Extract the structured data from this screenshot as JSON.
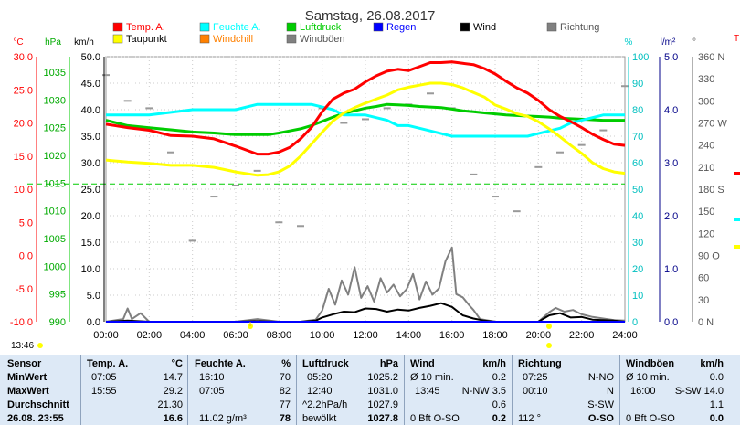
{
  "chart_data": {
    "type": "line",
    "title": "Samstag, 26.08.2017",
    "x_ticks": [
      "00:00",
      "02:00",
      "04:00",
      "06:00",
      "08:00",
      "10:00",
      "12:00",
      "14:00",
      "16:00",
      "18:00",
      "20:00",
      "22:00",
      "24:00"
    ],
    "x_range": [
      0,
      24
    ],
    "axes": {
      "temp": {
        "label": "°C",
        "color": "#ff0000",
        "range": [
          -10,
          30
        ],
        "ticks": [
          "30.0",
          "25.0",
          "20.0",
          "15.0",
          "10.0",
          "5.0",
          "0.0",
          "-5.0",
          "-10.0"
        ]
      },
      "hpa": {
        "label": "hPa",
        "color": "#00aa00",
        "range": [
          990,
          1040
        ],
        "ticks": [
          "1035",
          "1030",
          "1025",
          "1020",
          "1015",
          "1010",
          "1005",
          "1000",
          "995",
          "990"
        ]
      },
      "kmh": {
        "label": "km/h",
        "color": "#000000",
        "range": [
          0,
          50
        ],
        "ticks": [
          "50.0",
          "45.0",
          "40.0",
          "35.0",
          "30.0",
          "25.0",
          "20.0",
          "15.0",
          "10.0",
          "5.0",
          "0.0"
        ]
      },
      "pct": {
        "label": "%",
        "color": "#00cccc",
        "range": [
          0,
          100
        ],
        "ticks": [
          "100",
          "90",
          "80",
          "70",
          "60",
          "50",
          "40",
          "30",
          "20",
          "10",
          "0"
        ]
      },
      "rain": {
        "label": "l/m²",
        "color": "#000088",
        "range": [
          0,
          5
        ],
        "ticks": [
          "5.0",
          "4.0",
          "3.0",
          "2.0",
          "1.0",
          "0.0"
        ]
      },
      "dir": {
        "label": "°",
        "color": "#555555",
        "range": [
          0,
          360
        ],
        "ticks": [
          "360 N",
          "330",
          "300",
          "270 W",
          "240",
          "210",
          "180 S",
          "150",
          "120",
          "90 O",
          "60",
          "30",
          "0 N"
        ]
      }
    },
    "legend": [
      {
        "name": "Temp. A.",
        "color": "#ff0000"
      },
      {
        "name": "Taupunkt",
        "color": "#ffff00"
      },
      {
        "name": "Feuchte A.",
        "color": "#00ffff"
      },
      {
        "name": "Windchill",
        "color": "#ff8000"
      },
      {
        "name": "Luftdruck",
        "color": "#00cc00"
      },
      {
        "name": "Windböen",
        "color": "#808080"
      },
      {
        "name": "Regen",
        "color": "#0000ff"
      },
      {
        "name": "Wind",
        "color": "#000000"
      },
      {
        "name": "Richtung",
        "color": "#808080"
      }
    ],
    "series": [
      {
        "name": "Temp. A.",
        "axis": "temp",
        "color": "#ff0000",
        "x": [
          0,
          1,
          2,
          3,
          4,
          5,
          6,
          7,
          7.5,
          8,
          8.5,
          9,
          9.5,
          10,
          10.5,
          11,
          11.5,
          12,
          12.5,
          13,
          13.5,
          14,
          14.5,
          15,
          15.5,
          16,
          16.5,
          17,
          17.5,
          18,
          18.5,
          19,
          19.5,
          20,
          20.5,
          21,
          21.5,
          22,
          22.5,
          23,
          23.5,
          24
        ],
        "y": [
          19.8,
          19.3,
          18.9,
          18.1,
          18.0,
          17.6,
          16.5,
          15.3,
          15.3,
          15.6,
          16.3,
          17.6,
          19.3,
          21.7,
          23.6,
          24.5,
          25.1,
          26.2,
          27.1,
          27.8,
          28.1,
          27.9,
          28.5,
          29.1,
          29.1,
          29.2,
          29.0,
          28.8,
          28.2,
          27.4,
          26.3,
          25.3,
          24.5,
          23.4,
          22.0,
          21.0,
          20.2,
          19.3,
          18.3,
          17.5,
          16.8,
          16.6
        ]
      },
      {
        "name": "Taupunkt",
        "axis": "temp",
        "color": "#ffff00",
        "x": [
          0,
          1,
          2,
          3,
          4,
          5,
          6,
          7,
          7.5,
          8,
          8.5,
          9,
          9.5,
          10,
          10.5,
          11,
          11.5,
          12,
          12.5,
          13,
          13.5,
          14,
          14.5,
          15,
          15.5,
          16,
          16.5,
          17,
          17.5,
          18,
          18.5,
          19,
          19.5,
          20,
          20.5,
          21,
          21.5,
          22,
          22.5,
          23,
          23.5,
          24
        ],
        "y": [
          14.4,
          14.1,
          13.9,
          13.6,
          13.6,
          13.3,
          12.6,
          12.1,
          12.2,
          12.6,
          13.5,
          15.0,
          16.8,
          18.6,
          20.3,
          21.5,
          22.3,
          23.0,
          23.6,
          24.2,
          25.0,
          25.4,
          25.7,
          26.0,
          26.0,
          25.8,
          25.3,
          24.6,
          23.9,
          22.7,
          22.1,
          21.4,
          21.0,
          20.2,
          19.1,
          17.9,
          16.6,
          15.4,
          14.0,
          13.1,
          12.6,
          12.4
        ]
      },
      {
        "name": "Feuchte A.",
        "axis": "pct",
        "color": "#00ffff",
        "x": [
          0,
          1,
          2,
          3,
          4,
          5,
          6,
          7,
          7.5,
          8,
          8.5,
          9,
          9.5,
          10,
          10.5,
          11,
          11.5,
          12,
          12.5,
          13,
          13.5,
          14,
          14.5,
          15,
          15.5,
          16,
          16.5,
          17,
          17.5,
          18,
          18.5,
          19,
          19.5,
          20,
          20.5,
          21,
          21.5,
          22,
          22.5,
          23,
          23.5,
          24
        ],
        "y": [
          78,
          78,
          78,
          79,
          80,
          80,
          80,
          82,
          82,
          82,
          82,
          82,
          82,
          81,
          80,
          78,
          78,
          78,
          77,
          76,
          74,
          74,
          73,
          72,
          71,
          70,
          70,
          70,
          70,
          70,
          70,
          70,
          70,
          71,
          72,
          73,
          75,
          76,
          77,
          78,
          78,
          78
        ]
      },
      {
        "name": "Luftdruck",
        "axis": "hpa",
        "color": "#00cc00",
        "x": [
          0,
          1,
          2,
          3,
          4,
          5,
          6,
          7,
          7.5,
          8,
          8.5,
          9,
          9.5,
          10,
          10.5,
          11,
          11.5,
          12,
          12.5,
          13,
          13.5,
          14,
          14.5,
          15,
          15.5,
          16,
          16.5,
          17,
          17.5,
          18,
          18.5,
          19,
          19.5,
          20,
          20.5,
          21,
          21.5,
          22,
          22.5,
          23,
          23.5,
          24
        ],
        "y": [
          1028.0,
          1027.0,
          1026.6,
          1026.2,
          1025.8,
          1025.6,
          1025.3,
          1025.3,
          1025.3,
          1025.6,
          1026.0,
          1026.4,
          1027.0,
          1027.8,
          1028.6,
          1029.3,
          1029.8,
          1030.3,
          1030.6,
          1031.0,
          1030.9,
          1030.8,
          1030.6,
          1030.5,
          1030.4,
          1030.1,
          1029.8,
          1029.6,
          1029.4,
          1029.2,
          1029.0,
          1028.9,
          1028.8,
          1028.7,
          1028.6,
          1028.4,
          1028.3,
          1028.2,
          1028.1,
          1028.0,
          1028.0,
          1028.0
        ]
      },
      {
        "name": "Windböen",
        "axis": "kmh",
        "color": "#808080",
        "x": [
          0,
          0.8,
          1,
          1.2,
          1.6,
          2,
          3,
          4,
          5,
          6,
          7,
          8,
          9,
          9.7,
          10,
          10.3,
          10.6,
          10.9,
          11.2,
          11.5,
          11.8,
          12.1,
          12.4,
          12.7,
          13.0,
          13.3,
          13.6,
          13.9,
          14.2,
          14.5,
          14.8,
          15.1,
          15.4,
          15.7,
          16.0,
          16.2,
          16.5,
          16.8,
          17.0,
          17.3,
          18,
          19,
          20,
          20.5,
          20.8,
          21.2,
          21.6,
          22,
          22.5,
          23,
          23.5,
          24
        ],
        "y": [
          0,
          0.5,
          2.5,
          0.5,
          1.6,
          0,
          0,
          0,
          0,
          0,
          0.5,
          0,
          0,
          0.4,
          2.1,
          6.2,
          3.2,
          7.8,
          5.1,
          10.3,
          4.5,
          6.7,
          3.8,
          8.2,
          5.5,
          7.0,
          4.8,
          6.1,
          9.0,
          4.2,
          7.6,
          5.1,
          6.3,
          11.4,
          14.0,
          5.2,
          4.6,
          3.1,
          2.2,
          0.5,
          0,
          0,
          0,
          1.8,
          2.6,
          1.9,
          2.2,
          1.4,
          0.9,
          0.6,
          0.3,
          0.2
        ]
      },
      {
        "name": "Wind",
        "axis": "kmh",
        "color": "#000000",
        "x": [
          0,
          1,
          2,
          3,
          4,
          5,
          6,
          7,
          8,
          9,
          9.7,
          10,
          10.5,
          11,
          11.5,
          12,
          12.5,
          13,
          13.5,
          14,
          14.5,
          15,
          15.5,
          16,
          16.5,
          17,
          17.5,
          18,
          19,
          20,
          20.5,
          21,
          21.5,
          22,
          22.5,
          23,
          23.5,
          24
        ],
        "y": [
          0,
          0.2,
          0,
          0,
          0,
          0,
          0,
          0.1,
          0,
          0,
          0.2,
          0.8,
          1.4,
          1.9,
          1.8,
          2.5,
          2.4,
          1.9,
          2.3,
          2.1,
          2.6,
          3.0,
          3.5,
          2.8,
          1.2,
          0.6,
          0.2,
          0,
          0,
          0,
          1.2,
          1.6,
          0.8,
          0.9,
          0.4,
          0.3,
          0.2,
          0
        ]
      },
      {
        "name": "Richtung",
        "axis": "dir",
        "color": "#999999",
        "x": [
          0,
          1,
          2,
          3,
          4,
          5,
          6,
          7,
          8,
          9,
          10,
          11,
          12,
          13,
          14,
          15,
          16,
          17,
          18,
          19,
          20,
          21,
          22,
          23,
          24
        ],
        "y": [
          335,
          300,
          290,
          230,
          110,
          170,
          185,
          205,
          135,
          130,
          290,
          270,
          275,
          290,
          295,
          310,
          290,
          200,
          170,
          150,
          210,
          230,
          240,
          260,
          320
        ]
      }
    ],
    "reference_line": {
      "axis": "temp",
      "value": 10.8,
      "color": "#00cc00",
      "style": "dashed"
    }
  },
  "header_time": "13:46",
  "right_stub": {
    "top": "T"
  },
  "table": {
    "rows": [
      "Sensor",
      "MinWert",
      "MaxWert",
      "Durchschnitt",
      "26.08. 23:55"
    ],
    "temp": {
      "head": "Temp. A.",
      "unit": "°C",
      "r1": [
        "07:05",
        "14.7"
      ],
      "r2": [
        "15:55",
        "29.2"
      ],
      "r3": [
        "",
        "21.30"
      ],
      "r4": [
        "",
        "16.6"
      ]
    },
    "feuchte": {
      "head": "Feuchte A.",
      "unit": "%",
      "r1": [
        "16:10",
        "70"
      ],
      "r2": [
        "07:05",
        "82"
      ],
      "r3": [
        "",
        "77"
      ],
      "r4": [
        "11.02 g/m³",
        "78"
      ]
    },
    "druck": {
      "head": "Luftdruck",
      "unit": "hPa",
      "r1": [
        "05:20",
        "1025.2"
      ],
      "r2": [
        "12:40",
        "1031.0"
      ],
      "r3": [
        "^2.2hPa/h",
        "1027.9"
      ],
      "r4": [
        "bewölkt",
        "1027.8"
      ]
    },
    "wind": {
      "head": "Wind",
      "unit": "km/h",
      "r1": [
        "Ø 10 min.",
        "0.2"
      ],
      "r2": [
        "13:45",
        "N-NW 3.5"
      ],
      "r3": [
        "",
        "0.6"
      ],
      "r4": [
        "0 Bft O-SO",
        "0.2"
      ]
    },
    "richtung": {
      "head": "Richtung",
      "unit": "",
      "r1": [
        "07:25",
        "N-NO"
      ],
      "r2": [
        "00:10",
        "N"
      ],
      "r3": [
        "",
        "S-SW"
      ],
      "r4": [
        "112 °",
        "O-SO"
      ]
    },
    "boeen": {
      "head": "Windböen",
      "unit": "km/h",
      "r1": [
        "Ø 10 min.",
        "0.0"
      ],
      "r2": [
        "16:00",
        "S-SW 14.0"
      ],
      "r3": [
        "",
        "1.1"
      ],
      "r4": [
        "0 Bft O-SO",
        "0.0"
      ]
    }
  }
}
